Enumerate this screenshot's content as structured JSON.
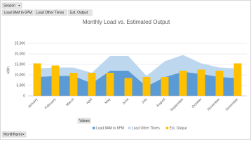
{
  "pivot_fields": {
    "filter": "Season",
    "axis": "MonthName",
    "values": "Values"
  },
  "chart_data": {
    "type": "combo",
    "title": "Monthly Load vs. Estimated Output",
    "y_label": "kWh",
    "categories": [
      "January",
      "February",
      "March",
      "April",
      "May",
      "June",
      "July",
      "August",
      "September",
      "October",
      "November",
      "December"
    ],
    "series": [
      {
        "name": "Load 8AM to 6PM",
        "type": "area",
        "stack": true,
        "color": "#5b9bd5",
        "values": [
          9000,
          9500,
          9500,
          6000,
          12000,
          12000,
          4500,
          9000,
          11500,
          10500,
          9000,
          8500
        ]
      },
      {
        "name": "Load Other Times",
        "type": "area",
        "stack": true,
        "color": "#bdd7ee",
        "values": [
          4000,
          4000,
          4000,
          5000,
          7000,
          7000,
          5000,
          7500,
          8000,
          5000,
          4500,
          4500
        ]
      },
      {
        "name": "Est. Output",
        "type": "bar",
        "color": "#ffc000",
        "values": [
          15500,
          14500,
          11000,
          11000,
          11000,
          8500,
          9000,
          9000,
          12000,
          12500,
          12000,
          15500
        ]
      }
    ],
    "ylim": [
      0,
      25000
    ],
    "yticks": [
      0,
      {
        "value": 5000,
        "label": "5,000"
      },
      {
        "value": 10000,
        "label": "10,000"
      },
      {
        "value": 15000,
        "label": "15,000"
      },
      {
        "value": 20000,
        "label": "20,000"
      },
      {
        "value": 25000,
        "label": "25,000"
      }
    ],
    "grid": true,
    "legend": "bottom"
  }
}
